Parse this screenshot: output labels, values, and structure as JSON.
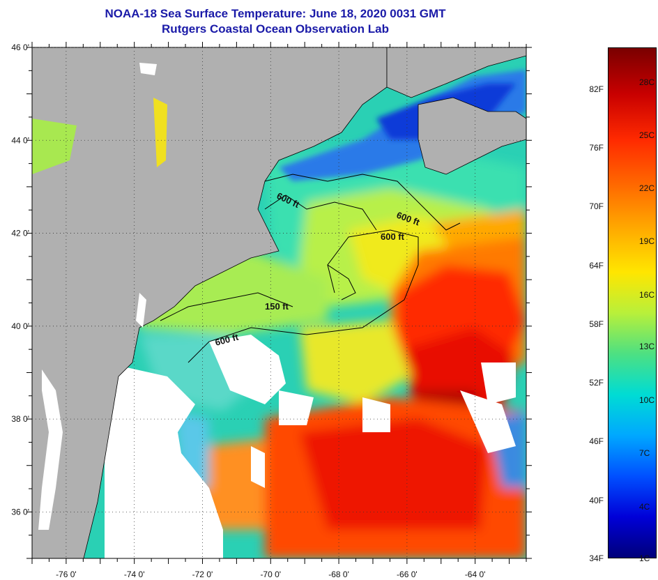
{
  "title": {
    "line1": "NOAA-18 Sea Surface Temperature:  June 18, 2020 0031 GMT",
    "line2": "Rutgers Coastal Ocean Observation Lab"
  },
  "map": {
    "lat_ticks": [
      {
        "lat": 46,
        "label": "46 0'"
      },
      {
        "lat": 44,
        "label": "44 0'"
      },
      {
        "lat": 42,
        "label": "42 0'"
      },
      {
        "lat": 40,
        "label": "40 0'"
      },
      {
        "lat": 38,
        "label": "38 0'"
      },
      {
        "lat": 36,
        "label": "36 0'"
      }
    ],
    "lon_ticks": [
      {
        "lon": -76,
        "label": "-76 0'"
      },
      {
        "lon": -74,
        "label": "-74 0'"
      },
      {
        "lon": -72,
        "label": "-72 0'"
      },
      {
        "lon": -70,
        "label": "-70 0'"
      },
      {
        "lon": -68,
        "label": "-68 0'"
      },
      {
        "lon": -66,
        "label": "-66 0'"
      },
      {
        "lon": -64,
        "label": "-64 0'"
      }
    ],
    "contour_labels": [
      "600 ft",
      "600 ft",
      "600 ft",
      "150 ft",
      "600 ft"
    ],
    "colors": {
      "land": "#b0b0b0",
      "cloud": "#ffffff",
      "coast": "#000000"
    }
  },
  "colorbar": {
    "fahrenheit": [
      "82F",
      "76F",
      "70F",
      "64F",
      "58F",
      "52F",
      "46F",
      "40F",
      "34F"
    ],
    "celsius": [
      "28C",
      "25C",
      "22C",
      "19C",
      "16C",
      "13C",
      "10C",
      "7C",
      "4C",
      "1C"
    ]
  }
}
